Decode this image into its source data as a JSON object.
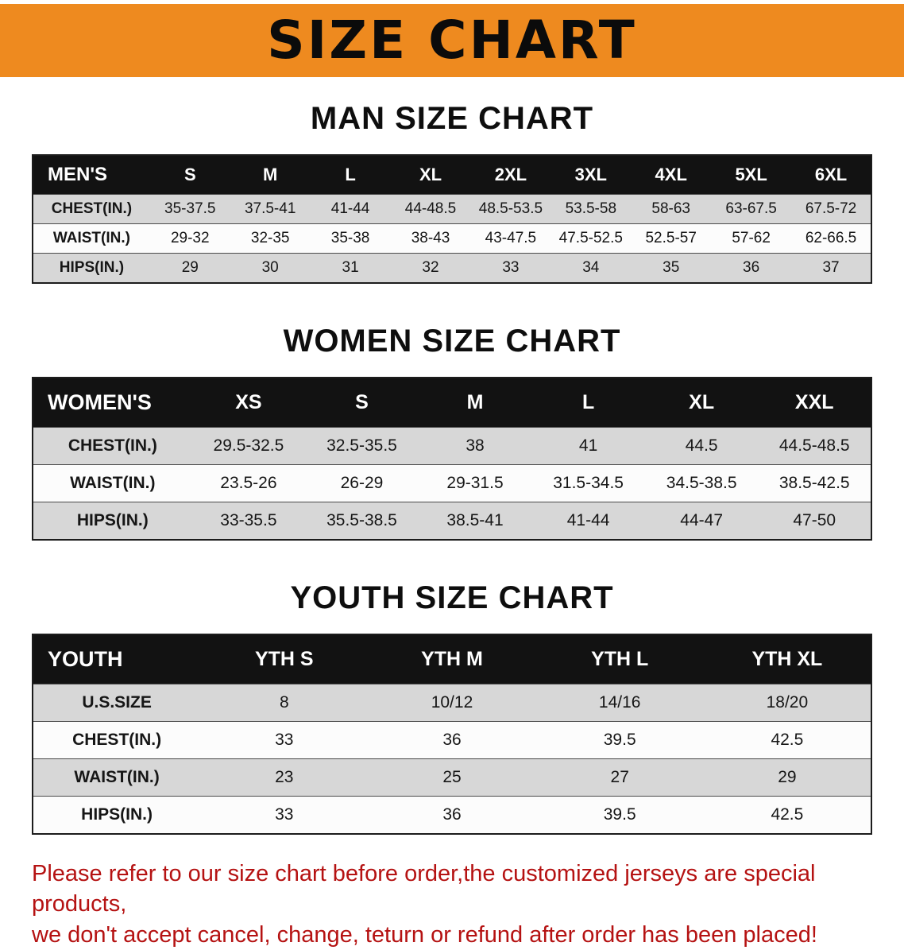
{
  "banner": {
    "title": "SIZE CHART"
  },
  "chart_data": [
    {
      "type": "table",
      "title": "MAN SIZE CHART",
      "columns": [
        "MEN'S",
        "S",
        "M",
        "L",
        "XL",
        "2XL",
        "3XL",
        "4XL",
        "5XL",
        "6XL"
      ],
      "rows": [
        [
          "CHEST(IN.)",
          "35-37.5",
          "37.5-41",
          "41-44",
          "44-48.5",
          "48.5-53.5",
          "53.5-58",
          "58-63",
          "63-67.5",
          "67.5-72"
        ],
        [
          "WAIST(IN.)",
          "29-32",
          "32-35",
          "35-38",
          "38-43",
          "43-47.5",
          "47.5-52.5",
          "52.5-57",
          "57-62",
          "62-66.5"
        ],
        [
          "HIPS(IN.)",
          "29",
          "30",
          "31",
          "32",
          "33",
          "34",
          "35",
          "36",
          "37"
        ]
      ]
    },
    {
      "type": "table",
      "title": "WOMEN SIZE CHART",
      "columns": [
        "WOMEN'S",
        "XS",
        "S",
        "M",
        "L",
        "XL",
        "XXL"
      ],
      "rows": [
        [
          "CHEST(IN.)",
          "29.5-32.5",
          "32.5-35.5",
          "38",
          "41",
          "44.5",
          "44.5-48.5"
        ],
        [
          "WAIST(IN.)",
          "23.5-26",
          "26-29",
          "29-31.5",
          "31.5-34.5",
          "34.5-38.5",
          "38.5-42.5"
        ],
        [
          "HIPS(IN.)",
          "33-35.5",
          "35.5-38.5",
          "38.5-41",
          "41-44",
          "44-47",
          "47-50"
        ]
      ]
    },
    {
      "type": "table",
      "title": "YOUTH SIZE CHART",
      "columns": [
        "YOUTH",
        "YTH S",
        "YTH M",
        "YTH L",
        "YTH XL"
      ],
      "rows": [
        [
          "U.S.SIZE",
          "8",
          "10/12",
          "14/16",
          "18/20"
        ],
        [
          "CHEST(IN.)",
          "33",
          "36",
          "39.5",
          "42.5"
        ],
        [
          "WAIST(IN.)",
          "23",
          "25",
          "27",
          "29"
        ],
        [
          "HIPS(IN.)",
          "33",
          "36",
          "39.5",
          "42.5"
        ]
      ]
    }
  ],
  "footer": {
    "lines": [
      "Please refer to our size chart before order,the customized jerseys are special products,",
      "we don't accept cancel, change, teturn or refund after order has been placed!"
    ]
  },
  "colors": {
    "banner_orange": "#ee8a1f",
    "table_header_black": "#121212",
    "row_stripe_gray": "#d7d7d7",
    "note_red": "#b51212"
  }
}
